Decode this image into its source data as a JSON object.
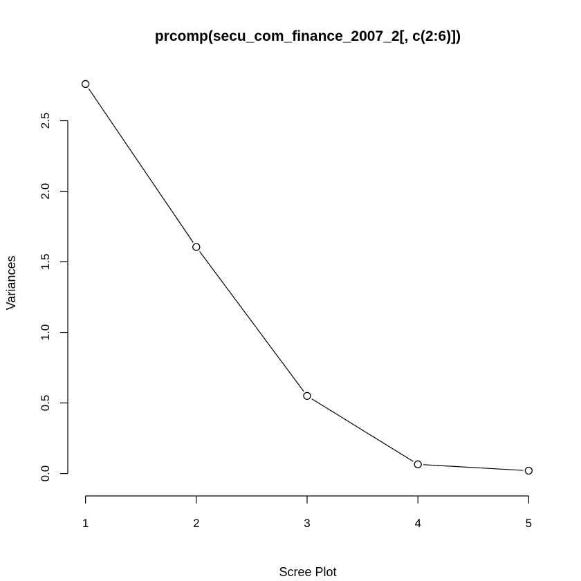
{
  "chart_data": {
    "type": "line",
    "title": "prcomp(secu_com_finance_2007_2[, c(2:6)])",
    "xlabel": "Scree Plot",
    "ylabel": "Variances",
    "x": [
      1,
      2,
      3,
      4,
      5
    ],
    "values": [
      2.76,
      1.605,
      0.55,
      0.065,
      0.02
    ],
    "xticks": [
      1,
      2,
      3,
      4,
      5
    ],
    "xtick_labels": [
      "1",
      "2",
      "3",
      "4",
      "5"
    ],
    "yticks": [
      0.0,
      0.5,
      1.0,
      1.5,
      2.0,
      2.5
    ],
    "ytick_labels": [
      "0.0",
      "0.5",
      "1.0",
      "1.5",
      "2.0",
      "2.5"
    ],
    "xlim": [
      0.84,
      5.16
    ],
    "ylim": [
      -0.1,
      2.87
    ],
    "grid": false,
    "legend": false,
    "marker": "open-circle",
    "line_color": "#000000",
    "background": "#ffffff"
  }
}
